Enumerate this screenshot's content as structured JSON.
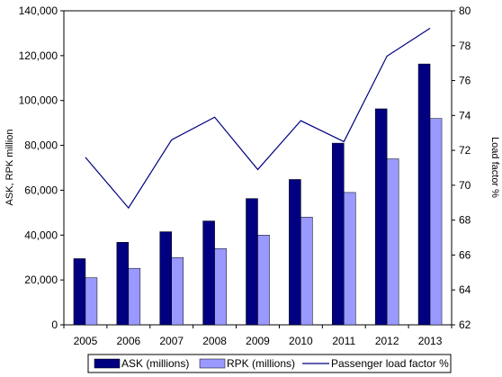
{
  "chart_data": {
    "type": "bar",
    "categories": [
      "2005",
      "2006",
      "2007",
      "2008",
      "2009",
      "2010",
      "2011",
      "2012",
      "2013"
    ],
    "series": [
      {
        "name": "ASK (millions)",
        "type": "bar",
        "axis": "left",
        "color": "#000080",
        "values": [
          29500,
          36800,
          41500,
          46300,
          56300,
          64800,
          81000,
          96300,
          116300
        ]
      },
      {
        "name": "RPK (millions)",
        "type": "bar",
        "axis": "left",
        "color": "#9999ff",
        "values": [
          21000,
          25200,
          30000,
          34000,
          40000,
          48000,
          59000,
          74000,
          92000
        ]
      },
      {
        "name": "Passenger load factor %",
        "type": "line",
        "axis": "right",
        "color": "#000080",
        "values": [
          71.6,
          68.7,
          72.6,
          73.9,
          70.9,
          73.7,
          72.5,
          77.4,
          79.0
        ]
      }
    ],
    "ylabel": "ASK, RPK million",
    "y2label": "Load factor %",
    "ylim": [
      0,
      140000
    ],
    "y2lim": [
      62,
      80
    ],
    "yticks": [
      "0",
      "20,000",
      "40,000",
      "60,000",
      "80,000",
      "100,000",
      "120,000",
      "140,000"
    ],
    "y2ticks": [
      "62",
      "64",
      "66",
      "68",
      "70",
      "72",
      "74",
      "76",
      "78",
      "80"
    ],
    "grid": false,
    "legend": "bottom"
  }
}
